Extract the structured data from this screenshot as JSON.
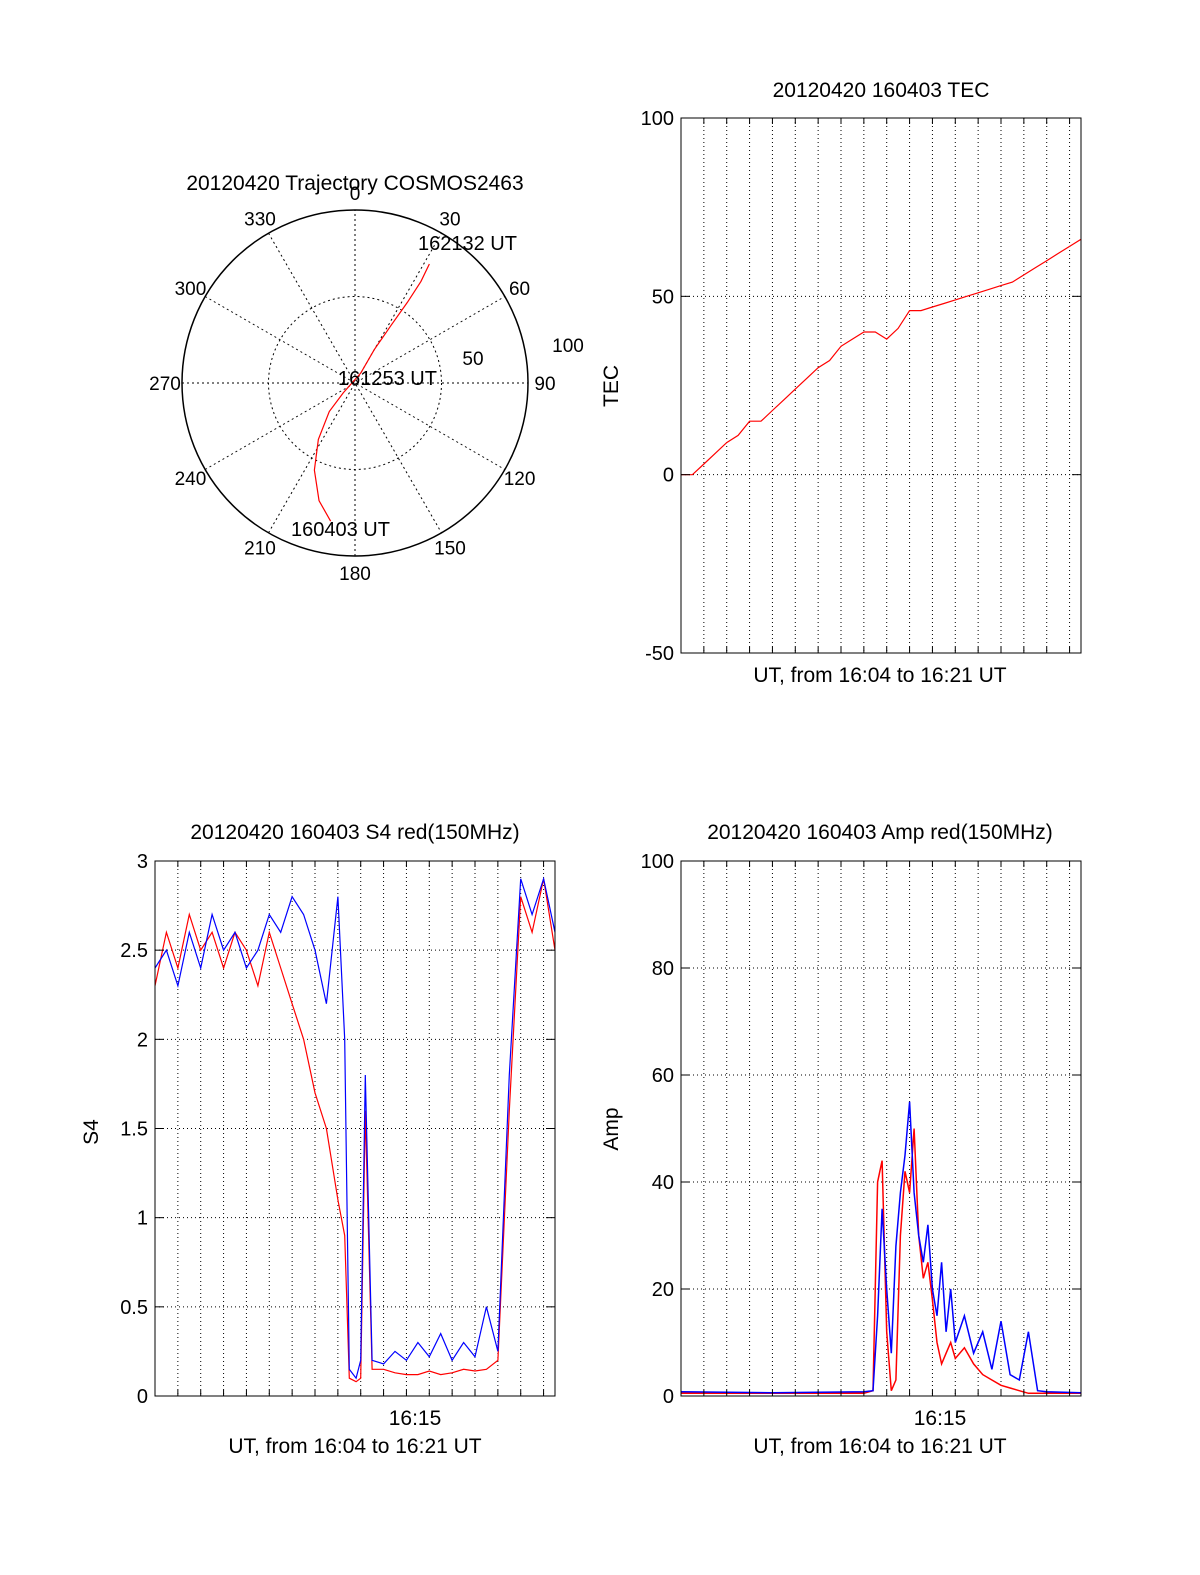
{
  "chart_data": [
    {
      "type": "polar",
      "title": "20120420 Trajectory COSMOS2463",
      "angle_ticks": [
        "0",
        "30",
        "60",
        "90",
        "120",
        "150",
        "180",
        "210",
        "240",
        "270",
        "300",
        "330"
      ],
      "radial_labels": [
        "50",
        "100"
      ],
      "time_labels": [
        "162132 UT",
        "161253 UT",
        "160403 UT"
      ],
      "grid": true,
      "series": [
        {
          "color": "#ff0000",
          "points_az_el": [
            [
              190,
              17
            ],
            [
              197,
              26
            ],
            [
              205,
              40
            ],
            [
              213,
              55
            ],
            [
              222,
              70
            ],
            [
              230,
              82
            ],
            [
              30,
              84
            ],
            [
              30,
              70
            ],
            [
              32,
              55
            ],
            [
              33,
              40
            ],
            [
              33,
              27
            ],
            [
              32,
              17
            ]
          ]
        }
      ]
    },
    {
      "type": "line",
      "title": "20120420 160403 TEC",
      "xlabel": "UT, from 16:04 to 16:21 UT",
      "ylabel": "TEC",
      "xlim": [
        0,
        17.5
      ],
      "ylim": [
        -50,
        100
      ],
      "yticks": [
        "-50",
        "0",
        "50",
        "100"
      ],
      "grid": true,
      "series": [
        {
          "color": "#ff0000",
          "x": [
            0,
            0.5,
            1,
            1.5,
            2,
            2.5,
            3,
            3.5,
            4,
            4.5,
            5,
            5.5,
            6,
            6.5,
            7,
            7.5,
            8,
            8.5,
            9,
            9.5,
            10,
            10.5,
            11,
            11.5,
            12,
            12.5,
            13,
            13.5,
            14,
            14.5,
            15,
            15.5,
            16,
            16.5,
            17,
            17.5
          ],
          "y": [
            0,
            0,
            3,
            6,
            9,
            11,
            15,
            15,
            18,
            21,
            24,
            27,
            30,
            32,
            36,
            38,
            40,
            40,
            38,
            41,
            46,
            46,
            47,
            48,
            49,
            50,
            51,
            52,
            53,
            54,
            56,
            58,
            60,
            62,
            64,
            66
          ]
        }
      ]
    },
    {
      "type": "line",
      "title": "20120420 160403 S4 red(150MHz)",
      "xlabel": "UT, from 16:04 to 16:21 UT",
      "ylabel": "S4",
      "xlim": [
        0,
        17.5
      ],
      "ylim": [
        0,
        3
      ],
      "xtick_labels": [
        "16:15"
      ],
      "yticks": [
        "0",
        "0.5",
        "1",
        "1.5",
        "2",
        "2.5",
        "3"
      ],
      "grid": true,
      "series": [
        {
          "color": "#ff0000",
          "x": [
            0,
            0.5,
            1,
            1.5,
            2,
            2.5,
            3,
            3.5,
            4,
            4.5,
            5,
            5.5,
            6,
            6.5,
            7,
            7.5,
            8,
            8.3,
            8.5,
            8.8,
            9,
            9.2,
            9.5,
            10,
            10.5,
            11,
            11.5,
            12,
            12.5,
            13,
            13.5,
            14,
            14.5,
            15,
            15.5,
            16,
            16.5,
            17,
            17.5
          ],
          "y": [
            2.3,
            2.6,
            2.4,
            2.7,
            2.5,
            2.6,
            2.4,
            2.6,
            2.5,
            2.3,
            2.6,
            2.4,
            2.2,
            2.0,
            1.7,
            1.5,
            1.1,
            0.9,
            0.1,
            0.08,
            0.1,
            1.6,
            0.15,
            0.15,
            0.13,
            0.12,
            0.12,
            0.14,
            0.12,
            0.13,
            0.15,
            0.14,
            0.15,
            0.2,
            1.6,
            2.8,
            2.6,
            2.9,
            2.5
          ]
        },
        {
          "color": "#0000ff",
          "x": [
            0,
            0.5,
            1,
            1.5,
            2,
            2.5,
            3,
            3.5,
            4,
            4.5,
            5,
            5.5,
            6,
            6.5,
            7,
            7.5,
            8,
            8.3,
            8.5,
            8.8,
            9,
            9.2,
            9.5,
            10,
            10.5,
            11,
            11.5,
            12,
            12.5,
            13,
            13.5,
            14,
            14.5,
            15,
            15.5,
            16,
            16.5,
            17,
            17.5
          ],
          "y": [
            2.4,
            2.5,
            2.3,
            2.6,
            2.4,
            2.7,
            2.5,
            2.6,
            2.4,
            2.5,
            2.7,
            2.6,
            2.8,
            2.7,
            2.5,
            2.2,
            2.8,
            2.0,
            0.15,
            0.1,
            0.2,
            1.8,
            0.2,
            0.18,
            0.25,
            0.2,
            0.3,
            0.22,
            0.35,
            0.2,
            0.3,
            0.22,
            0.5,
            0.25,
            1.8,
            2.9,
            2.7,
            2.9,
            2.6
          ]
        }
      ]
    },
    {
      "type": "line",
      "title": "20120420 160403 Amp red(150MHz)",
      "xlabel": "UT, from 16:04 to 16:21 UT",
      "ylabel": "Amp",
      "xlim": [
        0,
        17.5
      ],
      "ylim": [
        0,
        100
      ],
      "xtick_labels": [
        "16:15"
      ],
      "yticks": [
        "0",
        "20",
        "40",
        "60",
        "80",
        "100"
      ],
      "grid": true,
      "series": [
        {
          "color": "#ff0000",
          "x": [
            0,
            4,
            8,
            8.4,
            8.6,
            8.8,
            9.0,
            9.2,
            9.4,
            9.6,
            9.8,
            10.0,
            10.2,
            10.4,
            10.6,
            10.8,
            11.0,
            11.2,
            11.4,
            11.6,
            11.8,
            12.0,
            12.4,
            12.8,
            13.2,
            13.6,
            14.0,
            14.4,
            14.8,
            15.2,
            15.6,
            16,
            17.5
          ],
          "y": [
            0.5,
            0.5,
            0.5,
            1,
            40,
            44,
            12,
            1,
            3,
            30,
            42,
            38,
            50,
            30,
            22,
            25,
            18,
            10,
            6,
            8,
            10,
            7,
            9,
            6,
            4,
            3,
            2,
            1.5,
            1,
            0.5,
            0.5,
            0.5,
            0.5
          ]
        },
        {
          "color": "#0000ff",
          "x": [
            0,
            4,
            8,
            8.4,
            8.6,
            8.8,
            9.0,
            9.2,
            9.4,
            9.6,
            9.8,
            10.0,
            10.2,
            10.4,
            10.6,
            10.8,
            11.0,
            11.2,
            11.4,
            11.6,
            11.8,
            12.0,
            12.4,
            12.8,
            13.2,
            13.6,
            14.0,
            14.4,
            14.8,
            15.2,
            15.6,
            16,
            17.5
          ],
          "y": [
            0.8,
            0.6,
            0.8,
            1,
            15,
            35,
            20,
            8,
            28,
            38,
            45,
            55,
            38,
            30,
            25,
            32,
            20,
            15,
            25,
            12,
            20,
            10,
            15,
            8,
            12,
            5,
            14,
            4,
            3,
            12,
            1,
            0.8,
            0.6
          ]
        }
      ]
    }
  ]
}
